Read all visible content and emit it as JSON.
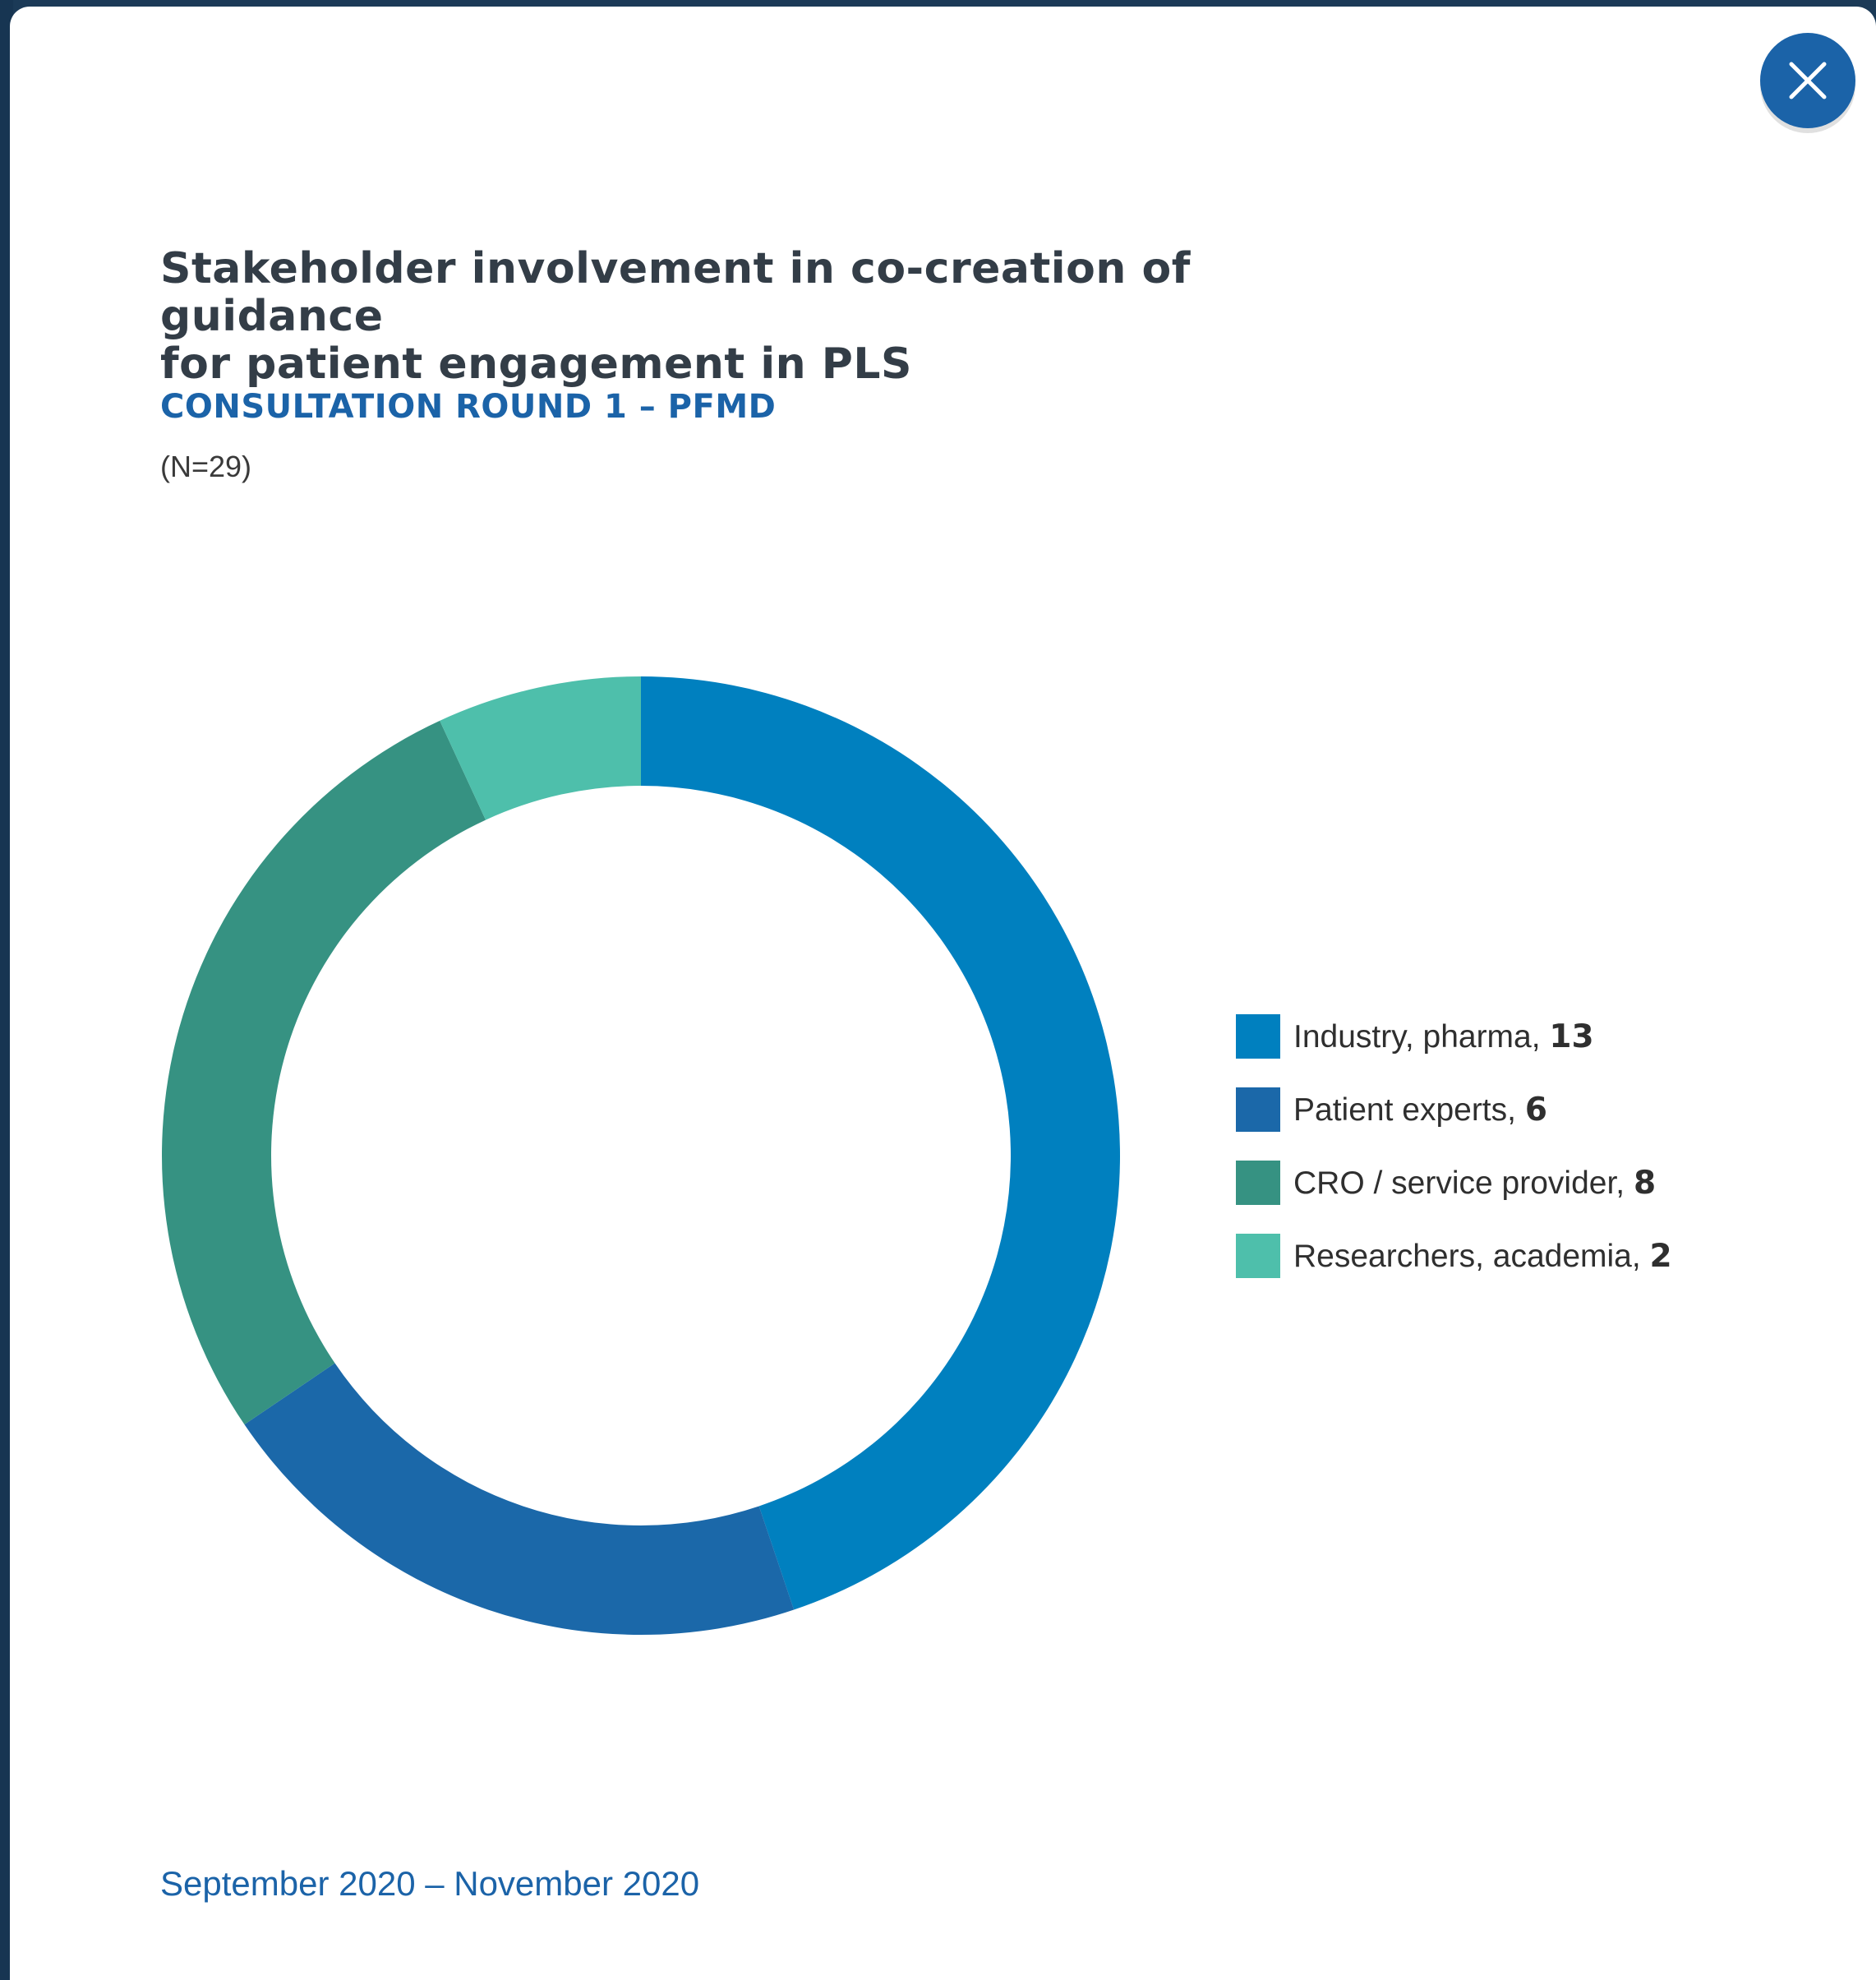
{
  "modal": {
    "title_line1": "Stakeholder involvement in co-creation of guidance",
    "title_line2": "for patient engagement in PLS",
    "subtitle": "CONSULTATION ROUND 1 – PFMD",
    "n_label": "(N=29)",
    "footer_date": "September 2020 – November 2020",
    "close_icon": "close-icon"
  },
  "colors": {
    "accent": "#1b63a8",
    "industry": "#0080bf",
    "patient": "#1b68a9",
    "cro": "#369282",
    "researchers": "#4ebfab"
  },
  "legend": [
    {
      "label": "Industry, pharma, ",
      "value": "13"
    },
    {
      "label": "Patient experts, ",
      "value": "6"
    },
    {
      "label": "CRO / service provider, ",
      "value": "8"
    },
    {
      "label": "Researchers, academia, ",
      "value": "2"
    }
  ],
  "chart_data": {
    "type": "pie",
    "title": "Stakeholder involvement in co-creation of guidance for patient engagement in PLS",
    "categories": [
      "Industry, pharma",
      "Patient experts",
      "CRO / service provider",
      "Researchers, academia"
    ],
    "values": [
      13,
      6,
      8,
      2
    ],
    "colors": [
      "#0080bf",
      "#1b68a9",
      "#369282",
      "#4ebfab"
    ],
    "total": 29,
    "legend_position": "right",
    "grid": false
  }
}
